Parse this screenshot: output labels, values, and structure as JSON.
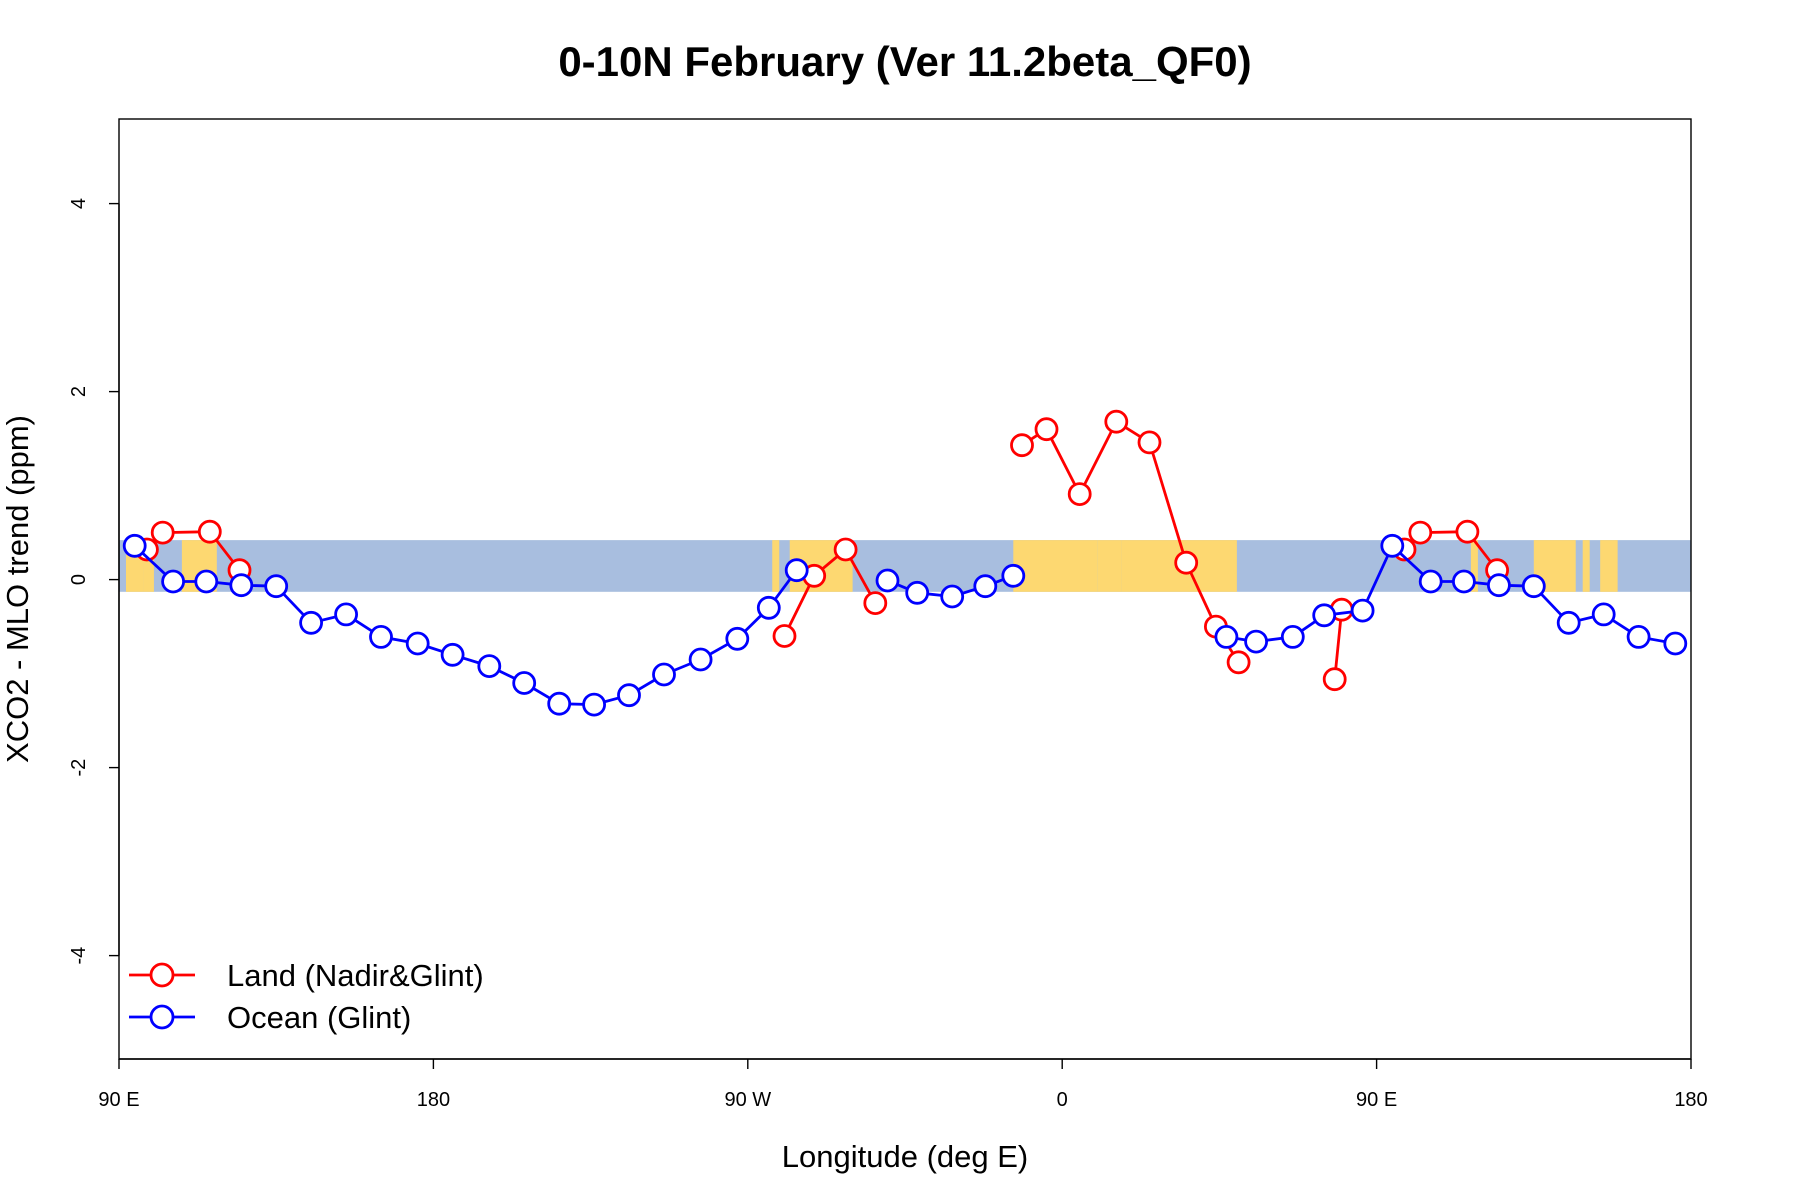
{
  "chart_data": {
    "type": "line",
    "title": "0-10N February (Ver 11.2beta_QF0)",
    "xlabel": "Longitude (deg E)",
    "ylabel": "XCO2 - MLO trend (ppm)",
    "x_axis": {
      "min": 90,
      "max": 450,
      "ticks": [
        {
          "value": 90,
          "label": "90 E"
        },
        {
          "value": 180,
          "label": "180"
        },
        {
          "value": 270,
          "label": "90 W"
        },
        {
          "value": 360,
          "label": "0"
        },
        {
          "value": 450,
          "label": "90 E"
        },
        {
          "value": 540,
          "label": "180"
        }
      ],
      "range": [
        90,
        540
      ]
    },
    "y_axis": {
      "ticks": [
        -4,
        -2,
        0,
        2,
        4
      ],
      "tick_labels": [
        "-4",
        "-2",
        "0",
        "2",
        "4"
      ],
      "range": [
        -5.1,
        4.9
      ]
    },
    "background_band": {
      "description": "latitude band 0-10N map strip",
      "y_range": [
        -0.13,
        0.42
      ],
      "ocean_color": "#a8bedf",
      "land_color": "#fdd871",
      "land_segments": [
        [
          92,
          97
        ],
        [
          97,
          100
        ],
        [
          108,
          118
        ],
        [
          277,
          279
        ],
        [
          282,
          300
        ],
        [
          346,
          370
        ],
        [
          370,
          377
        ],
        [
          377,
          410
        ],
        [
          477,
          479
        ],
        [
          495,
          507
        ],
        [
          509,
          511
        ],
        [
          514,
          519
        ]
      ]
    },
    "legend": {
      "position": "bottom-left",
      "entries": [
        "Land (Nadir&Glint)",
        "Ocean (Glint)"
      ]
    },
    "grid": false,
    "series": [
      {
        "name": "Land (Nadir&Glint)",
        "color": "#ff0000",
        "segments": [
          [
            [
              98,
              0.32
            ],
            [
              102.5,
              0.5
            ],
            [
              116,
              0.51
            ],
            [
              124.5,
              0.1
            ]
          ],
          [
            [
              280.5,
              -0.6
            ],
            [
              289,
              0.04
            ],
            [
              298,
              0.32
            ],
            [
              306.5,
              -0.25
            ]
          ],
          [
            [
              348.5,
              1.43
            ],
            [
              355.5,
              1.6
            ],
            [
              365,
              0.91
            ],
            [
              375.5,
              1.68
            ],
            [
              385,
              1.46
            ],
            [
              395.5,
              0.18
            ],
            [
              404,
              -0.5
            ],
            [
              410.5,
              -0.88
            ]
          ],
          [
            [
              438,
              -1.06
            ],
            [
              440,
              -0.32
            ]
          ],
          [
            [
              458,
              0.32
            ],
            [
              462.5,
              0.5
            ],
            [
              476,
              0.51
            ],
            [
              484.5,
              0.1
            ]
          ]
        ]
      },
      {
        "name": "Ocean (Glint)",
        "color": "#0000ff",
        "segments": [
          [
            [
              94.5,
              0.36
            ],
            [
              105.5,
              -0.02
            ],
            [
              115,
              -0.02
            ],
            [
              125,
              -0.06
            ],
            [
              135,
              -0.07
            ],
            [
              145,
              -0.46
            ],
            [
              155,
              -0.37
            ],
            [
              165,
              -0.61
            ],
            [
              175.5,
              -0.68
            ],
            [
              185.5,
              -0.8
            ],
            [
              196,
              -0.92
            ],
            [
              206,
              -1.1
            ],
            [
              216,
              -1.32
            ],
            [
              226,
              -1.33
            ],
            [
              236,
              -1.23
            ],
            [
              246,
              -1.01
            ],
            [
              256.5,
              -0.85
            ],
            [
              267,
              -0.63
            ],
            [
              276,
              -0.3
            ],
            [
              284,
              0.1
            ]
          ],
          [
            [
              310,
              -0.01
            ],
            [
              318.5,
              -0.14
            ],
            [
              328.5,
              -0.18
            ],
            [
              338,
              -0.07
            ],
            [
              346,
              0.04
            ]
          ],
          [
            [
              407,
              -0.61
            ],
            [
              415.5,
              -0.66
            ],
            [
              426,
              -0.61
            ],
            [
              435,
              -0.38
            ],
            [
              446,
              -0.33
            ],
            [
              454.5,
              0.36
            ],
            [
              465.5,
              -0.02
            ],
            [
              475,
              -0.02
            ],
            [
              485,
              -0.06
            ],
            [
              495,
              -0.07
            ],
            [
              505,
              -0.46
            ],
            [
              515,
              -0.37
            ],
            [
              525,
              -0.61
            ],
            [
              535.5,
              -0.68
            ]
          ]
        ]
      }
    ]
  }
}
